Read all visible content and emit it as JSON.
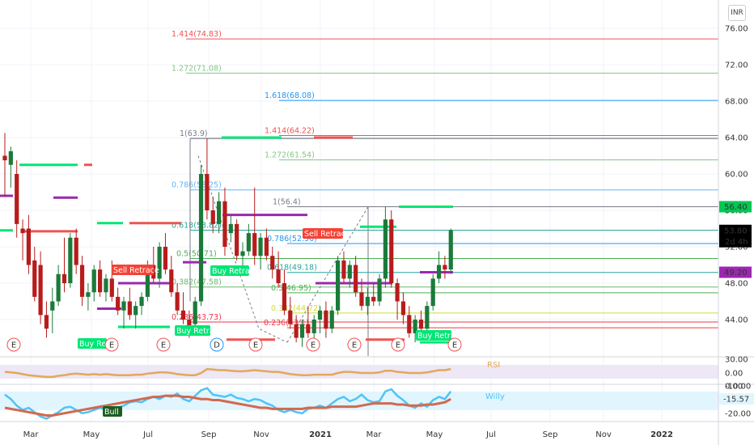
{
  "currency": "INR",
  "chart_data": {
    "type": "candlestick",
    "ylim": [
      41.0,
      77.0
    ],
    "y_ticks": [
      "76.00",
      "72.00",
      "68.00",
      "64.00",
      "60.00",
      "56.00",
      "52.00",
      "48.00",
      "44.00"
    ],
    "x_ticks": [
      "Mar",
      "May",
      "Jul",
      "Sep",
      "Nov",
      "2021",
      "Mar",
      "May",
      "Jul",
      "Sep",
      "Nov",
      "2022"
    ],
    "candles": [
      {
        "o": 62.0,
        "h": 64.5,
        "l": 57.5,
        "c": 61.5
      },
      {
        "o": 61.0,
        "h": 63.0,
        "l": 58.5,
        "c": 62.5
      },
      {
        "o": 60.0,
        "h": 61.5,
        "l": 53.0,
        "c": 54.5
      },
      {
        "o": 54.0,
        "h": 55.0,
        "l": 50.5,
        "c": 53.5
      },
      {
        "o": 54.0,
        "h": 55.5,
        "l": 49.0,
        "c": 50.0
      },
      {
        "o": 50.5,
        "h": 52.0,
        "l": 46.0,
        "c": 46.5
      },
      {
        "o": 50.0,
        "h": 51.5,
        "l": 43.5,
        "c": 44.5
      },
      {
        "o": 44.5,
        "h": 46.0,
        "l": 42.0,
        "c": 43.0
      },
      {
        "o": 45.0,
        "h": 47.5,
        "l": 42.5,
        "c": 46.0
      },
      {
        "o": 46.0,
        "h": 50.0,
        "l": 45.5,
        "c": 49.0
      },
      {
        "o": 49.0,
        "h": 53.0,
        "l": 47.0,
        "c": 48.0
      },
      {
        "o": 48.0,
        "h": 53.5,
        "l": 47.5,
        "c": 53.0
      },
      {
        "o": 53.0,
        "h": 54.0,
        "l": 49.0,
        "c": 50.0
      },
      {
        "o": 50.0,
        "h": 51.0,
        "l": 45.5,
        "c": 46.5
      },
      {
        "o": 46.5,
        "h": 48.0,
        "l": 45.0,
        "c": 47.0
      },
      {
        "o": 47.0,
        "h": 50.0,
        "l": 46.0,
        "c": 49.5
      },
      {
        "o": 49.5,
        "h": 50.5,
        "l": 46.5,
        "c": 47.0
      },
      {
        "o": 47.0,
        "h": 49.0,
        "l": 46.0,
        "c": 48.5
      },
      {
        "o": 48.5,
        "h": 50.5,
        "l": 46.0,
        "c": 46.5
      },
      {
        "o": 46.5,
        "h": 47.5,
        "l": 44.5,
        "c": 45.0
      },
      {
        "o": 45.0,
        "h": 46.5,
        "l": 43.0,
        "c": 46.0
      },
      {
        "o": 46.0,
        "h": 47.5,
        "l": 44.0,
        "c": 44.5
      },
      {
        "o": 44.5,
        "h": 46.0,
        "l": 43.0,
        "c": 45.5
      },
      {
        "o": 45.5,
        "h": 47.0,
        "l": 44.5,
        "c": 46.5
      },
      {
        "o": 46.5,
        "h": 50.5,
        "l": 46.0,
        "c": 50.0
      },
      {
        "o": 50.0,
        "h": 52.0,
        "l": 48.0,
        "c": 48.5
      },
      {
        "o": 48.5,
        "h": 52.5,
        "l": 47.5,
        "c": 52.0
      },
      {
        "o": 52.0,
        "h": 53.5,
        "l": 49.0,
        "c": 49.5
      },
      {
        "o": 49.5,
        "h": 51.0,
        "l": 46.5,
        "c": 47.0
      },
      {
        "o": 47.0,
        "h": 48.0,
        "l": 44.5,
        "c": 45.0
      },
      {
        "o": 45.0,
        "h": 47.0,
        "l": 43.5,
        "c": 44.0
      },
      {
        "o": 44.0,
        "h": 45.0,
        "l": 42.0,
        "c": 43.0
      },
      {
        "o": 43.5,
        "h": 46.5,
        "l": 42.5,
        "c": 46.0
      },
      {
        "o": 46.0,
        "h": 61.0,
        "l": 45.5,
        "c": 60.0
      },
      {
        "o": 60.0,
        "h": 63.9,
        "l": 55.0,
        "c": 56.0
      },
      {
        "o": 56.0,
        "h": 57.5,
        "l": 53.5,
        "c": 54.5
      },
      {
        "o": 54.5,
        "h": 58.0,
        "l": 53.5,
        "c": 57.0
      },
      {
        "o": 57.0,
        "h": 58.5,
        "l": 51.0,
        "c": 52.0
      },
      {
        "o": 53.5,
        "h": 55.5,
        "l": 52.5,
        "c": 54.5
      },
      {
        "o": 54.5,
        "h": 55.0,
        "l": 50.5,
        "c": 51.0
      },
      {
        "o": 51.0,
        "h": 52.5,
        "l": 49.5,
        "c": 51.5
      },
      {
        "o": 51.5,
        "h": 54.5,
        "l": 51.0,
        "c": 53.5
      },
      {
        "o": 53.5,
        "h": 58.5,
        "l": 50.0,
        "c": 51.0
      },
      {
        "o": 51.0,
        "h": 53.5,
        "l": 49.5,
        "c": 53.0
      },
      {
        "o": 53.0,
        "h": 54.0,
        "l": 50.5,
        "c": 51.0
      },
      {
        "o": 51.0,
        "h": 52.0,
        "l": 48.5,
        "c": 49.5
      },
      {
        "o": 49.5,
        "h": 51.5,
        "l": 47.5,
        "c": 48.0
      },
      {
        "o": 48.0,
        "h": 49.5,
        "l": 44.5,
        "c": 45.0
      },
      {
        "o": 45.0,
        "h": 46.5,
        "l": 43.0,
        "c": 43.5
      },
      {
        "o": 43.5,
        "h": 44.5,
        "l": 41.5,
        "c": 42.0
      },
      {
        "o": 42.0,
        "h": 44.0,
        "l": 41.0,
        "c": 43.5
      },
      {
        "o": 43.5,
        "h": 45.5,
        "l": 42.0,
        "c": 42.5
      },
      {
        "o": 42.5,
        "h": 44.5,
        "l": 41.5,
        "c": 44.0
      },
      {
        "o": 44.0,
        "h": 45.5,
        "l": 42.5,
        "c": 45.0
      },
      {
        "o": 45.0,
        "h": 46.0,
        "l": 42.0,
        "c": 43.0
      },
      {
        "o": 43.0,
        "h": 45.5,
        "l": 42.5,
        "c": 45.0
      },
      {
        "o": 45.0,
        "h": 51.0,
        "l": 44.5,
        "c": 50.5
      },
      {
        "o": 50.5,
        "h": 51.5,
        "l": 48.0,
        "c": 48.5
      },
      {
        "o": 48.5,
        "h": 50.5,
        "l": 47.5,
        "c": 50.0
      },
      {
        "o": 50.0,
        "h": 51.0,
        "l": 46.5,
        "c": 47.0
      },
      {
        "o": 47.0,
        "h": 48.5,
        "l": 45.0,
        "c": 45.5
      },
      {
        "o": 45.5,
        "h": 47.5,
        "l": 44.5,
        "c": 46.5
      },
      {
        "o": 46.5,
        "h": 48.0,
        "l": 45.5,
        "c": 46.0
      },
      {
        "o": 46.0,
        "h": 49.0,
        "l": 45.5,
        "c": 48.5
      },
      {
        "o": 48.5,
        "h": 56.4,
        "l": 47.5,
        "c": 55.0
      },
      {
        "o": 55.0,
        "h": 56.0,
        "l": 47.5,
        "c": 48.0
      },
      {
        "o": 48.0,
        "h": 48.5,
        "l": 44.0,
        "c": 46.0
      },
      {
        "o": 46.0,
        "h": 47.0,
        "l": 43.5,
        "c": 44.5
      },
      {
        "o": 44.5,
        "h": 45.5,
        "l": 42.0,
        "c": 42.5
      },
      {
        "o": 42.5,
        "h": 44.5,
        "l": 41.5,
        "c": 44.0
      },
      {
        "o": 44.0,
        "h": 45.0,
        "l": 42.5,
        "c": 43.0
      },
      {
        "o": 43.0,
        "h": 46.0,
        "l": 42.5,
        "c": 45.5
      },
      {
        "o": 45.5,
        "h": 49.0,
        "l": 45.0,
        "c": 48.5
      },
      {
        "o": 48.5,
        "h": 51.5,
        "l": 48.0,
        "c": 50.0
      },
      {
        "o": 50.0,
        "h": 51.0,
        "l": 48.5,
        "c": 49.5
      },
      {
        "o": 49.5,
        "h": 54.0,
        "l": 49.0,
        "c": 53.8
      }
    ],
    "fib_levels": [
      {
        "label": "1.414(74.83)",
        "value": 74.83,
        "color": "#ef5350"
      },
      {
        "label": "1.272(71.08)",
        "value": 71.08,
        "color": "#81c784"
      },
      {
        "label": "1.618(68.08)",
        "value": 68.08,
        "color": "#2196f3"
      },
      {
        "label": "1.414(64.22)",
        "value": 64.22,
        "color": "#ef5350"
      },
      {
        "label": "1(63.9)",
        "value": 63.9,
        "color": "#787b86"
      },
      {
        "label": "1.272(61.54)",
        "value": 61.54,
        "color": "#81c784"
      },
      {
        "label": "0.786(58.25)",
        "value": 58.25,
        "color": "#64b5f6"
      },
      {
        "label": "1(56.4)",
        "value": 56.4,
        "color": "#787b86"
      },
      {
        "label": "0.618(53.82)",
        "value": 53.82,
        "color": "#26a69a"
      },
      {
        "label": "0.786(52.36)",
        "value": 52.36,
        "color": "#2196f3"
      },
      {
        "label": "0.5(50.71)",
        "value": 50.71,
        "color": "#4caf50"
      },
      {
        "label": "0.618(49.18)",
        "value": 49.18,
        "color": "#26a69a"
      },
      {
        "label": "0.382(47.58)",
        "value": 47.58,
        "color": "#66bb6a"
      },
      {
        "label": "0.5(46.95)",
        "value": 46.95,
        "color": "#4caf50"
      },
      {
        "label": "0.382(44.72)",
        "value": 44.72,
        "color": "#cddc39"
      },
      {
        "label": "0.236(43.73)",
        "value": 43.73,
        "color": "#f23645"
      },
      {
        "label": "0.236(43.1)",
        "value": 43.1,
        "color": "#f23645"
      }
    ],
    "price_markers": [
      {
        "label": "56.40",
        "value": 56.4,
        "bg": "#00c853",
        "fg": "#000000"
      },
      {
        "label": "53.80",
        "value": 53.8,
        "bg": "#000000",
        "fg": "#ffffff",
        "sub": "2d 4h"
      },
      {
        "label": "49.20",
        "value": 49.2,
        "bg": "#9c27b0",
        "fg": "#ffffff"
      }
    ],
    "tags": [
      {
        "text": "Sell Retrace",
        "type": "sell"
      },
      {
        "text": "Buy Retrace",
        "type": "buy"
      },
      {
        "text": "Sell Retrace",
        "type": "sell"
      },
      {
        "text": "Buy Retrace",
        "type": "buy"
      },
      {
        "text": "Buy Retrace",
        "type": "buy"
      },
      {
        "text": "Buy Retrace",
        "type": "buy"
      },
      {
        "text": "Bull",
        "type": "bull"
      }
    ],
    "events": [
      "E",
      "E",
      "E",
      "D",
      "E",
      "E",
      "E",
      "E",
      "E"
    ],
    "rsi": {
      "label": "RSI",
      "y_ticks": [
        "30.00",
        "0.00",
        "-10.00"
      ],
      "values": [
        42,
        41,
        40,
        38,
        36,
        35,
        34,
        33,
        33,
        35,
        36,
        38,
        39,
        38,
        37,
        38,
        37,
        38,
        37,
        36,
        36,
        36,
        37,
        37,
        39,
        40,
        41,
        41,
        40,
        38,
        37,
        36,
        36,
        40,
        47,
        46,
        45,
        45,
        44,
        43,
        43,
        44,
        45,
        44,
        43,
        42,
        42,
        40,
        38,
        37,
        36,
        36,
        37,
        37,
        37,
        37,
        40,
        42,
        42,
        41,
        40,
        40,
        40,
        41,
        44,
        44,
        42,
        41,
        40,
        40,
        40,
        41,
        43,
        45,
        45,
        47
      ]
    },
    "willy": {
      "label": "Willy",
      "y_ticks": [
        "0.00",
        "-15.57",
        "-20.00"
      ],
      "value_badge": "-15.57",
      "fast": [
        -8,
        -12,
        -18,
        -22,
        -20,
        -24,
        -28,
        -30,
        -27,
        -24,
        -20,
        -19,
        -22,
        -25,
        -24,
        -22,
        -20,
        -22,
        -23,
        -20,
        -18,
        -15,
        -14,
        -15,
        -12,
        -10,
        -12,
        -9,
        -10,
        -7,
        -12,
        -14,
        -9,
        -4,
        -2,
        -8,
        -9,
        -10,
        -8,
        -11,
        -12,
        -14,
        -12,
        -13,
        -16,
        -18,
        -22,
        -24,
        -22,
        -24,
        -25,
        -21,
        -20,
        -18,
        -20,
        -16,
        -12,
        -10,
        -14,
        -12,
        -8,
        -13,
        -15,
        -14,
        -5,
        -3,
        -9,
        -13,
        -18,
        -20,
        -16,
        -19,
        -13,
        -10,
        -12,
        -5
      ],
      "slow": [
        -20,
        -21,
        -22,
        -23,
        -24,
        -25,
        -26,
        -27,
        -27,
        -26,
        -25,
        -24,
        -23,
        -22,
        -21,
        -20,
        -19,
        -18,
        -17,
        -16,
        -15,
        -14,
        -13,
        -12,
        -11,
        -10,
        -10,
        -9,
        -9,
        -9,
        -10,
        -10,
        -11,
        -12,
        -12,
        -13,
        -13,
        -14,
        -15,
        -16,
        -17,
        -18,
        -19,
        -20,
        -20,
        -21,
        -21,
        -21,
        -21,
        -21,
        -21,
        -20,
        -20,
        -20,
        -20,
        -19,
        -19,
        -19,
        -19,
        -19,
        -18,
        -17,
        -16,
        -16,
        -16,
        -16,
        -17,
        -17,
        -18,
        -18,
        -18,
        -17,
        -17,
        -16,
        -15,
        -12
      ]
    }
  }
}
